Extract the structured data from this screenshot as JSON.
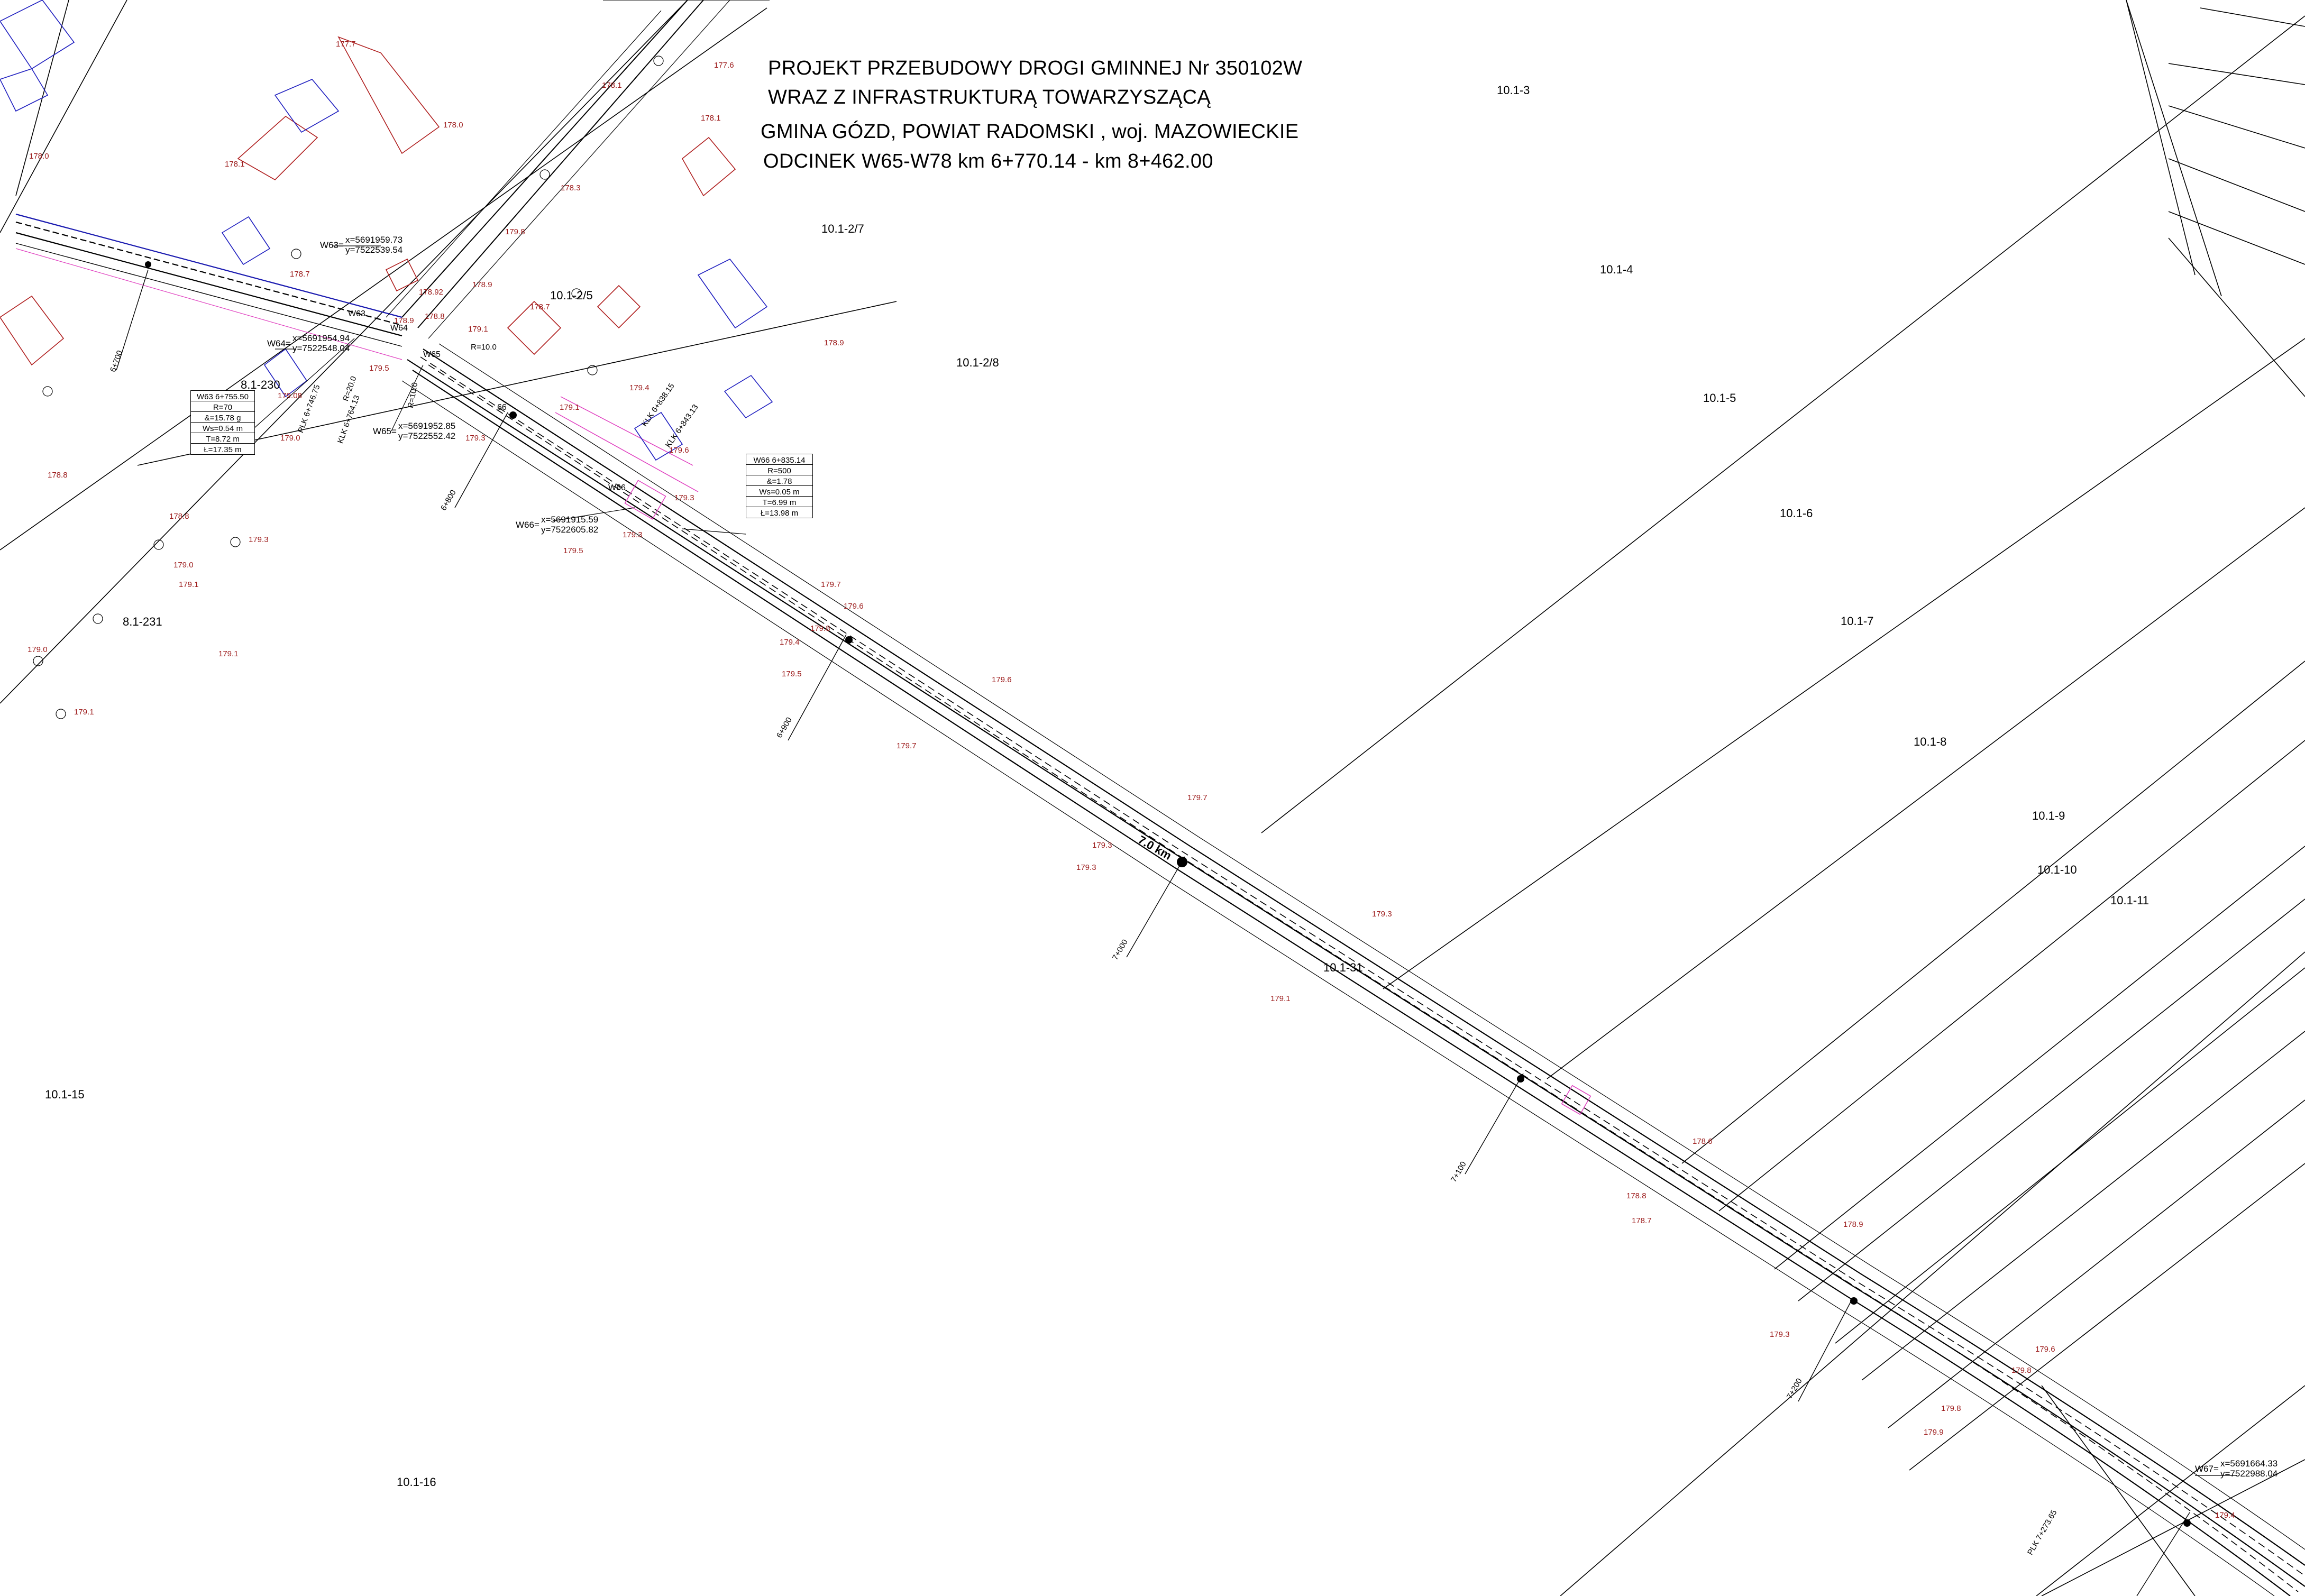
{
  "title": {
    "line1": "PROJEKT PRZEBUDOWY DROGI GMINNEJ Nr 350102W",
    "line2": "WRAZ Z INFRASTRUKTURĄ TOWARZYSZĄCĄ",
    "line3": "GMINA GÓZD, POWIAT RADOMSKI , woj. MAZOWIECKIE",
    "line4": "ODCINEK W65-W78 km 6+770.14 - km 8+462.00"
  },
  "parcels": [
    "10.1-3",
    "10.1-2/7",
    "10.1-4",
    "10.1-2/8",
    "10.1-5",
    "10.1-6",
    "10.1-7",
    "10.1-8",
    "10.1-9",
    "10.1-10",
    "10.1-11",
    "10.1-31",
    "10.1-15",
    "10.1-16",
    "8.1-230",
    "8.1-231",
    "10.1-2/5"
  ],
  "elevations": [
    "177.7",
    "177.6",
    "178.1",
    "178.1",
    "178.0",
    "178.0",
    "178.1",
    "178.3",
    "178.7",
    "178.9",
    "178.92",
    "179.1",
    "178.8",
    "178.9",
    "179.8",
    "179.4",
    "179.1",
    "179.3",
    "179.3",
    "179.6",
    "179.7",
    "179.6",
    "179.4",
    "179.5",
    "179.7",
    "179.8",
    "179.7",
    "179.3",
    "179.3",
    "179.3",
    "179.1",
    "178.6",
    "178.8",
    "178.7",
    "178.9",
    "179.3",
    "179.6",
    "179.8",
    "179.8",
    "179.9",
    "179.4",
    "178.8",
    "179.0",
    "179.1",
    "179.3",
    "179.0",
    "179.1",
    "179.1",
    "178.8",
    "179.3",
    "179.5",
    "178.9",
    "179.5",
    "178.7",
    "179.08",
    "179.0",
    "179.6"
  ],
  "kilometrage": [
    "6+700",
    "6+800",
    "6+900",
    "7+000",
    "7+100",
    "7+200"
  ],
  "km_big": "7.0 km",
  "vertices": {
    "W63": {
      "label": "W63=",
      "x": "x=5691959.73",
      "y": "y=7522539.54"
    },
    "W64": {
      "label": "W64=",
      "x": "x=5691954.94",
      "y": "y=7522548.04"
    },
    "W65": {
      "label": "W65=",
      "x": "x=5691952.85",
      "y": "y=7522552.42"
    },
    "W66": {
      "label": "W66=",
      "x": "x=5691915.59",
      "y": "y=7522605.82"
    },
    "W67": {
      "label": "W67=",
      "x": "x=5691664.33",
      "y": "y=7522988.04"
    }
  },
  "curve_tables": [
    {
      "rows": [
        "W63 6+755.50",
        "R=70",
        "&=15.78 g",
        "Ws=0.54 m",
        "T=8.72 m",
        "Ł=17.35 m"
      ]
    },
    {
      "rows": [
        "W66 6+835.14",
        "R=500",
        "&=1.78",
        "Ws=0.05 m",
        "T=6.99 m",
        "Ł=13.98 m"
      ]
    }
  ],
  "vertex_marks": [
    "W65",
    "W64",
    "W63",
    "W66",
    "66"
  ],
  "misc_labels": [
    "KLK 6+764.13",
    "PLK 6+746.75",
    "KLK 6+838.15",
    "KLK 6+843.13",
    "PLK 7+273.65",
    "R=10.0",
    "R=20.0",
    "R=10.0"
  ],
  "colors": {
    "road": "#000000",
    "building_red": "#b02020",
    "building_blue": "#2020c0",
    "pink": "#e040c0",
    "elev": "#9c1a1a"
  }
}
